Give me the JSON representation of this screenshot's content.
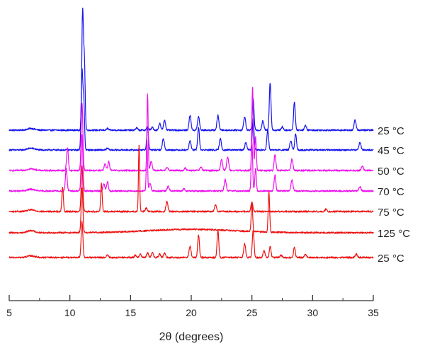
{
  "chart_data": {
    "type": "line",
    "title": "",
    "xlabel": "2θ (degrees)",
    "ylabel": "",
    "xlim": [
      5,
      35
    ],
    "xticks": [
      5,
      10,
      15,
      20,
      25,
      30,
      35
    ],
    "xtick_labels": [
      "5",
      "10",
      "15",
      "20",
      "25",
      "30",
      "35"
    ],
    "y_axis_visible": false,
    "grid": false,
    "legend": "none",
    "series": [
      {
        "name": "25 °C",
        "color": "#1515ee",
        "baseline": 6,
        "peaks": [
          [
            6.8,
            1.5,
            0.3
          ],
          [
            11.05,
            105,
            0.07
          ],
          [
            11.2,
            55,
            0.06
          ],
          [
            13.1,
            1.5,
            0.08
          ],
          [
            15.5,
            2,
            0.08
          ],
          [
            16.4,
            3,
            0.08
          ],
          [
            16.8,
            2.5,
            0.08
          ],
          [
            17.4,
            6,
            0.08
          ],
          [
            17.8,
            9,
            0.08
          ],
          [
            19.9,
            13,
            0.08
          ],
          [
            20.6,
            12,
            0.08
          ],
          [
            22.2,
            13,
            0.08
          ],
          [
            24.4,
            12,
            0.08
          ],
          [
            25.1,
            28,
            0.07
          ],
          [
            25.9,
            8,
            0.08
          ],
          [
            26.5,
            42,
            0.07
          ],
          [
            27.5,
            3,
            0.08
          ],
          [
            28.5,
            25,
            0.07
          ],
          [
            29.4,
            4,
            0.08
          ],
          [
            33.5,
            9,
            0.08
          ]
        ]
      },
      {
        "name": "45 °C",
        "color": "#1515ee",
        "baseline": 6,
        "peaks": [
          [
            6.8,
            1.5,
            0.3
          ],
          [
            11.0,
            70,
            0.07
          ],
          [
            11.15,
            40,
            0.06
          ],
          [
            13.1,
            1.5,
            0.08
          ],
          [
            16.4,
            20,
            0.07
          ],
          [
            17.7,
            10,
            0.08
          ],
          [
            19.9,
            8,
            0.08
          ],
          [
            20.6,
            20,
            0.07
          ],
          [
            22.4,
            10,
            0.08
          ],
          [
            24.5,
            7,
            0.08
          ],
          [
            25.1,
            28,
            0.07
          ],
          [
            26.3,
            18,
            0.07
          ],
          [
            28.2,
            8,
            0.08
          ],
          [
            28.6,
            14,
            0.07
          ],
          [
            33.9,
            7,
            0.08
          ]
        ]
      },
      {
        "name": "50 °C",
        "color": "#ee11ee",
        "baseline": 6,
        "peaks": [
          [
            6.8,
            1.5,
            0.3
          ],
          [
            9.8,
            20,
            0.07
          ],
          [
            11.0,
            60,
            0.07
          ],
          [
            12.9,
            6,
            0.08
          ],
          [
            13.2,
            8,
            0.07
          ],
          [
            16.4,
            68,
            0.05
          ],
          [
            16.7,
            8,
            0.08
          ],
          [
            18.0,
            3,
            0.08
          ],
          [
            19.5,
            2,
            0.08
          ],
          [
            20.8,
            3,
            0.08
          ],
          [
            22.5,
            10,
            0.08
          ],
          [
            23.0,
            12,
            0.08
          ],
          [
            25.05,
            74,
            0.06
          ],
          [
            25.3,
            30,
            0.06
          ],
          [
            26.9,
            14,
            0.07
          ],
          [
            28.3,
            10,
            0.08
          ],
          [
            34.1,
            4,
            0.08
          ]
        ]
      },
      {
        "name": "70 °C",
        "color": "#ee11ee",
        "baseline": 6,
        "peaks": [
          [
            6.8,
            1.5,
            0.3
          ],
          [
            9.7,
            20,
            0.07
          ],
          [
            11.0,
            50,
            0.07
          ],
          [
            12.8,
            6,
            0.08
          ],
          [
            13.1,
            8,
            0.07
          ],
          [
            16.35,
            45,
            0.05
          ],
          [
            16.6,
            7,
            0.08
          ],
          [
            18.1,
            4,
            0.08
          ],
          [
            19.4,
            2,
            0.08
          ],
          [
            22.8,
            10,
            0.08
          ],
          [
            25.0,
            43,
            0.06
          ],
          [
            25.3,
            20,
            0.06
          ],
          [
            26.9,
            14,
            0.07
          ],
          [
            28.3,
            10,
            0.08
          ],
          [
            33.9,
            4,
            0.08
          ]
        ]
      },
      {
        "name": "75 °C",
        "color": "#ee1515",
        "baseline": 6,
        "peaks": [
          [
            6.8,
            1.5,
            0.3
          ],
          [
            9.4,
            22,
            0.06
          ],
          [
            11.0,
            40,
            0.07
          ],
          [
            12.6,
            25,
            0.06
          ],
          [
            15.7,
            58,
            0.05
          ],
          [
            16.3,
            3,
            0.08
          ],
          [
            18.0,
            9,
            0.08
          ],
          [
            22.0,
            6,
            0.08
          ],
          [
            25.0,
            8,
            0.08
          ],
          [
            31.1,
            2,
            0.08
          ]
        ]
      },
      {
        "name": "125 °C",
        "color": "#ee1515",
        "baseline": 6,
        "peaks": [
          [
            6.8,
            2,
            0.3
          ],
          [
            11.0,
            40,
            0.07
          ],
          [
            20.0,
            3,
            3.5
          ],
          [
            25.0,
            25,
            0.06
          ],
          [
            26.4,
            35,
            0.06
          ]
        ]
      },
      {
        "name": "25 °C",
        "color": "#ee1515",
        "baseline": 6,
        "peaks": [
          [
            6.8,
            1.5,
            0.3
          ],
          [
            11.0,
            32,
            0.07
          ],
          [
            13.1,
            2,
            0.08
          ],
          [
            15.4,
            2,
            0.08
          ],
          [
            15.8,
            3,
            0.08
          ],
          [
            16.4,
            4,
            0.08
          ],
          [
            16.8,
            4,
            0.08
          ],
          [
            17.4,
            3,
            0.08
          ],
          [
            17.8,
            4,
            0.08
          ],
          [
            19.9,
            10,
            0.08
          ],
          [
            20.6,
            20,
            0.07
          ],
          [
            22.2,
            24,
            0.07
          ],
          [
            24.4,
            12,
            0.08
          ],
          [
            25.1,
            24,
            0.07
          ],
          [
            26.0,
            6,
            0.08
          ],
          [
            26.5,
            10,
            0.07
          ],
          [
            27.4,
            2,
            0.08
          ],
          [
            28.5,
            9,
            0.07
          ],
          [
            29.4,
            3,
            0.08
          ],
          [
            33.6,
            3,
            0.08
          ]
        ]
      }
    ]
  }
}
